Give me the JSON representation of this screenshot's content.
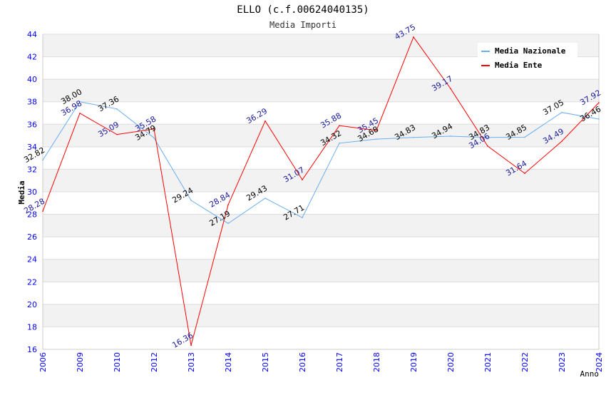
{
  "chart_data": {
    "type": "line",
    "title": "ELLO (c.f.00624040135)",
    "subtitle": "Media Importi",
    "xlabel": "Anno",
    "ylabel": "Media",
    "ylim": [
      16,
      44
    ],
    "yticks": [
      "16",
      "18",
      "20",
      "22",
      "24",
      "26",
      "28",
      "30",
      "32",
      "34",
      "36",
      "38",
      "40",
      "42",
      "44"
    ],
    "categories": [
      "2006",
      "2009",
      "2010",
      "2012",
      "2013",
      "2014",
      "2015",
      "2016",
      "2017",
      "2018",
      "2019",
      "2020",
      "2021",
      "2022",
      "2023",
      "2024"
    ],
    "legend_position": "top-right",
    "grid": true,
    "series": [
      {
        "name": "Media Nazionale",
        "color": "#6aaef0",
        "label_color": "#000000",
        "values": [
          32.82,
          38.0,
          37.36,
          34.79,
          29.24,
          27.19,
          29.43,
          27.71,
          34.32,
          34.68,
          34.83,
          34.94,
          34.83,
          34.85,
          37.05,
          36.46
        ]
      },
      {
        "name": "Media Ente",
        "color": "#ff0000",
        "label_color": "#1a1a9a",
        "values": [
          28.28,
          36.98,
          35.09,
          35.58,
          16.36,
          28.84,
          36.29,
          31.07,
          35.88,
          35.45,
          43.75,
          39.17,
          34.06,
          31.64,
          34.49,
          37.92
        ]
      }
    ]
  }
}
